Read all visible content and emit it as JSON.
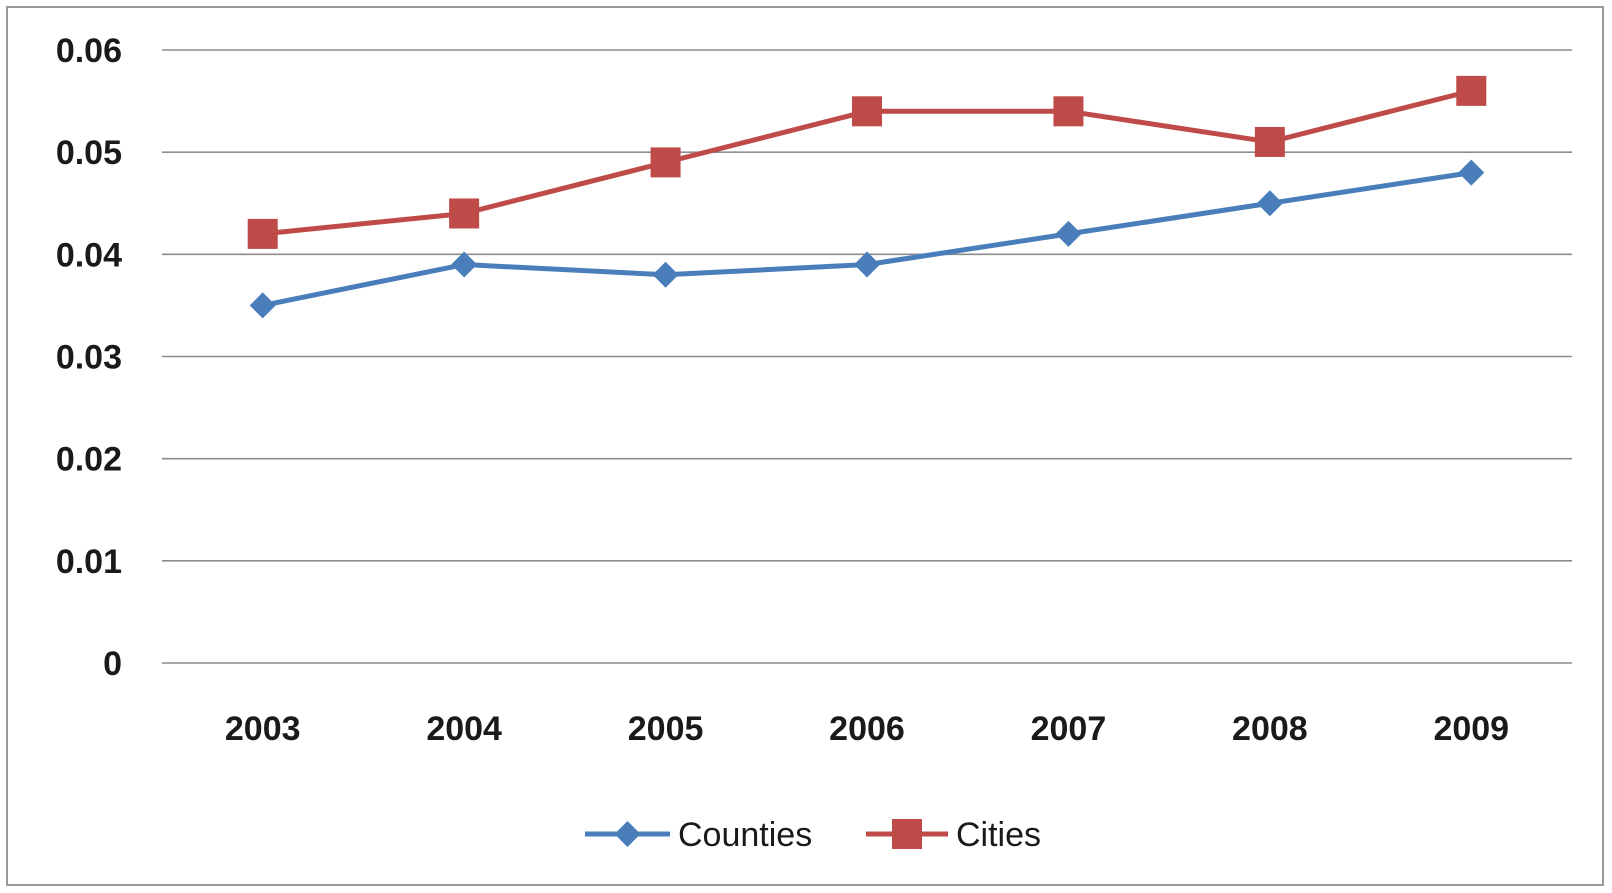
{
  "chart_data": {
    "type": "line",
    "title": "",
    "xlabel": "",
    "ylabel": "",
    "categories": [
      "2003",
      "2004",
      "2005",
      "2006",
      "2007",
      "2008",
      "2009"
    ],
    "ylim": [
      0,
      0.06
    ],
    "yticks": [
      "0",
      "0.01",
      "0.02",
      "0.03",
      "0.04",
      "0.05",
      "0.06"
    ],
    "grid": true,
    "legend_position": "bottom",
    "series": [
      {
        "name": "Counties",
        "color": "#4a7ebb",
        "marker": "diamond",
        "values": [
          0.035,
          0.039,
          0.038,
          0.039,
          0.042,
          0.045,
          0.048
        ]
      },
      {
        "name": "Cities",
        "color": "#be4b48",
        "marker": "square",
        "values": [
          0.042,
          0.044,
          0.049,
          0.054,
          0.054,
          0.051,
          0.056
        ]
      }
    ]
  }
}
